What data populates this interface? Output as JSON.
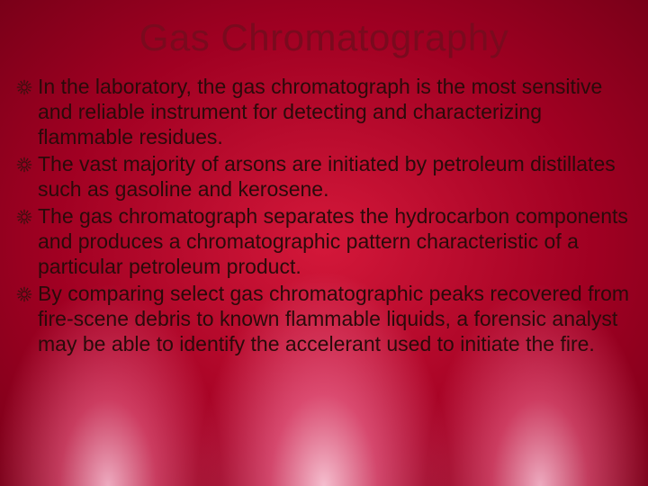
{
  "slide": {
    "title": "Gas Chromatography",
    "title_color": "#7a0a1e",
    "title_fontsize": 42,
    "body_color": "#2a0a0a",
    "body_fontsize": 23,
    "bullet_icon_color": "#3a0f0f",
    "background": {
      "base_gradient_inner": "#d4183a",
      "base_gradient_mid": "#a00022",
      "base_gradient_outer": "#780018",
      "glow_color_center": "#ffd2e1",
      "glow_color_mid": "#ff82aa"
    },
    "bullets": [
      "In the laboratory, the gas chromatograph is the most sensitive and reliable instrument for detecting and characterizing flammable residues.",
      "The vast majority of arsons are initiated by petroleum distillates such as gasoline and kerosene.",
      "The gas chromatograph separates the hydrocarbon components and produces a chromatographic pattern characteristic of a particular petroleum product.",
      "By comparing select gas chromatographic peaks recovered from fire-scene debris to known flammable liquids, a forensic analyst may be able to identify the accelerant used to initiate the fire."
    ]
  }
}
